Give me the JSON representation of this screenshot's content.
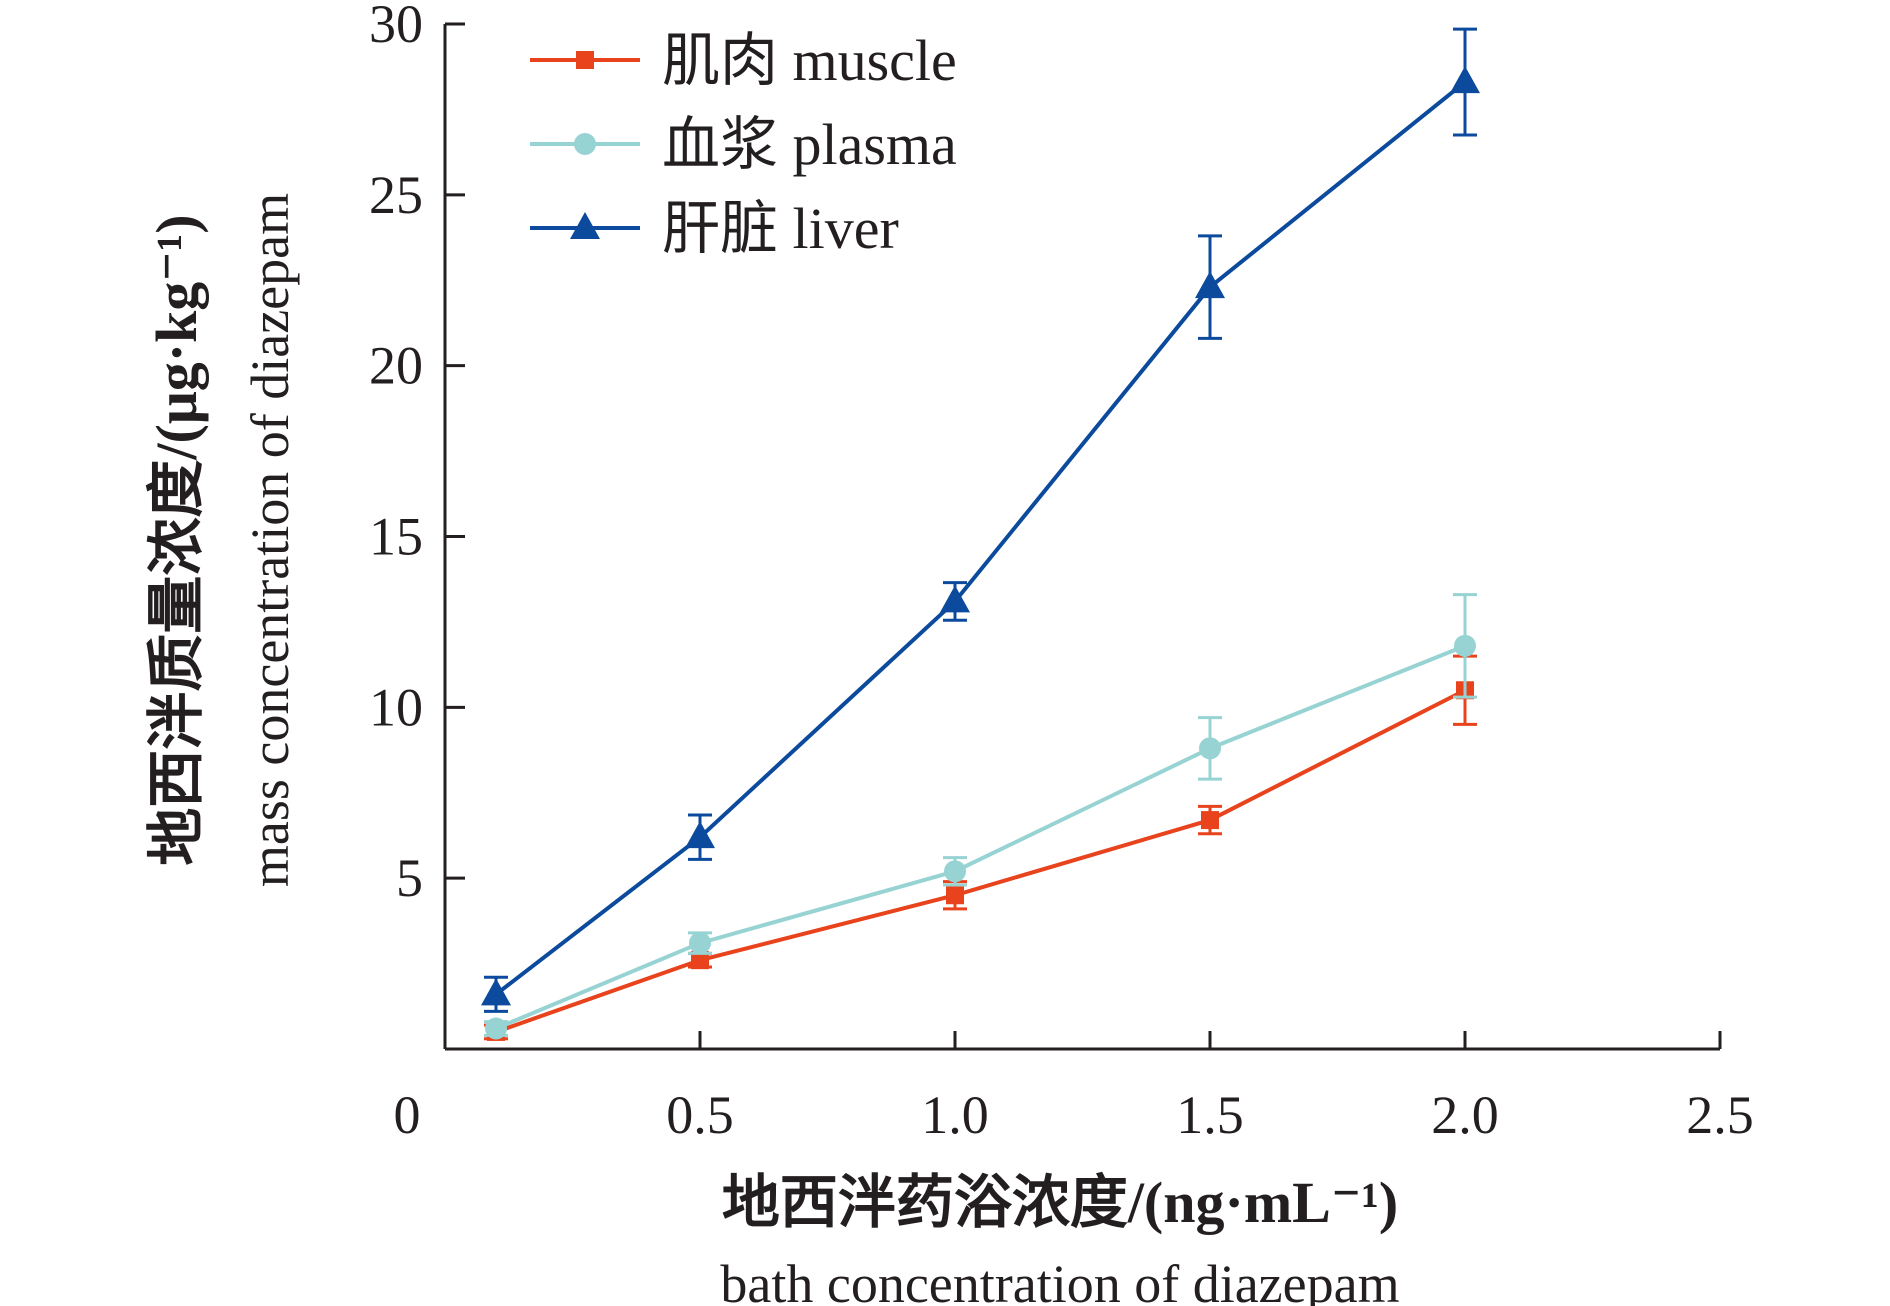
{
  "chart_data": {
    "type": "line",
    "title": "",
    "xlabel": "地西泮药浴浓度/(ng·mL⁻¹)",
    "xlabel_en": "bath concentration of diazepam",
    "ylabel": "地西泮质量浓度/(μg·kg⁻¹)",
    "ylabel_en": "mass concentration of diazepam",
    "xlim": [
      0,
      2.5
    ],
    "ylim": [
      0,
      30
    ],
    "xticks": [
      0.5,
      1.0,
      1.5,
      2.0,
      2.5
    ],
    "xtick_labels": [
      "0.5",
      "1.0",
      "1.5",
      "2.0",
      "2.5"
    ],
    "origin_label": "0",
    "yticks": [
      5,
      10,
      15,
      20,
      25,
      30
    ],
    "ytick_labels": [
      "5",
      "10",
      "15",
      "20",
      "25",
      "30"
    ],
    "grid": false,
    "legend_position": "top-left",
    "x": [
      0.1,
      0.5,
      1.0,
      1.5,
      2.0
    ],
    "series": [
      {
        "name": "肌肉 muscle",
        "color": "#e8431c",
        "marker": "square",
        "values": [
          0.5,
          2.6,
          4.5,
          6.7,
          10.5
        ],
        "errors": [
          0.2,
          0.2,
          0.4,
          0.4,
          1.0
        ]
      },
      {
        "name": "血浆 plasma",
        "color": "#97d3d3",
        "marker": "circle",
        "values": [
          0.6,
          3.1,
          5.2,
          8.8,
          11.8
        ],
        "errors": [
          0.2,
          0.3,
          0.4,
          0.9,
          1.5
        ]
      },
      {
        "name": "肝脏 liver",
        "color": "#0b4a9c",
        "marker": "triangle",
        "values": [
          1.6,
          6.2,
          13.1,
          22.3,
          28.3
        ],
        "errors": [
          0.5,
          0.65,
          0.55,
          1.5,
          1.55
        ]
      }
    ]
  }
}
